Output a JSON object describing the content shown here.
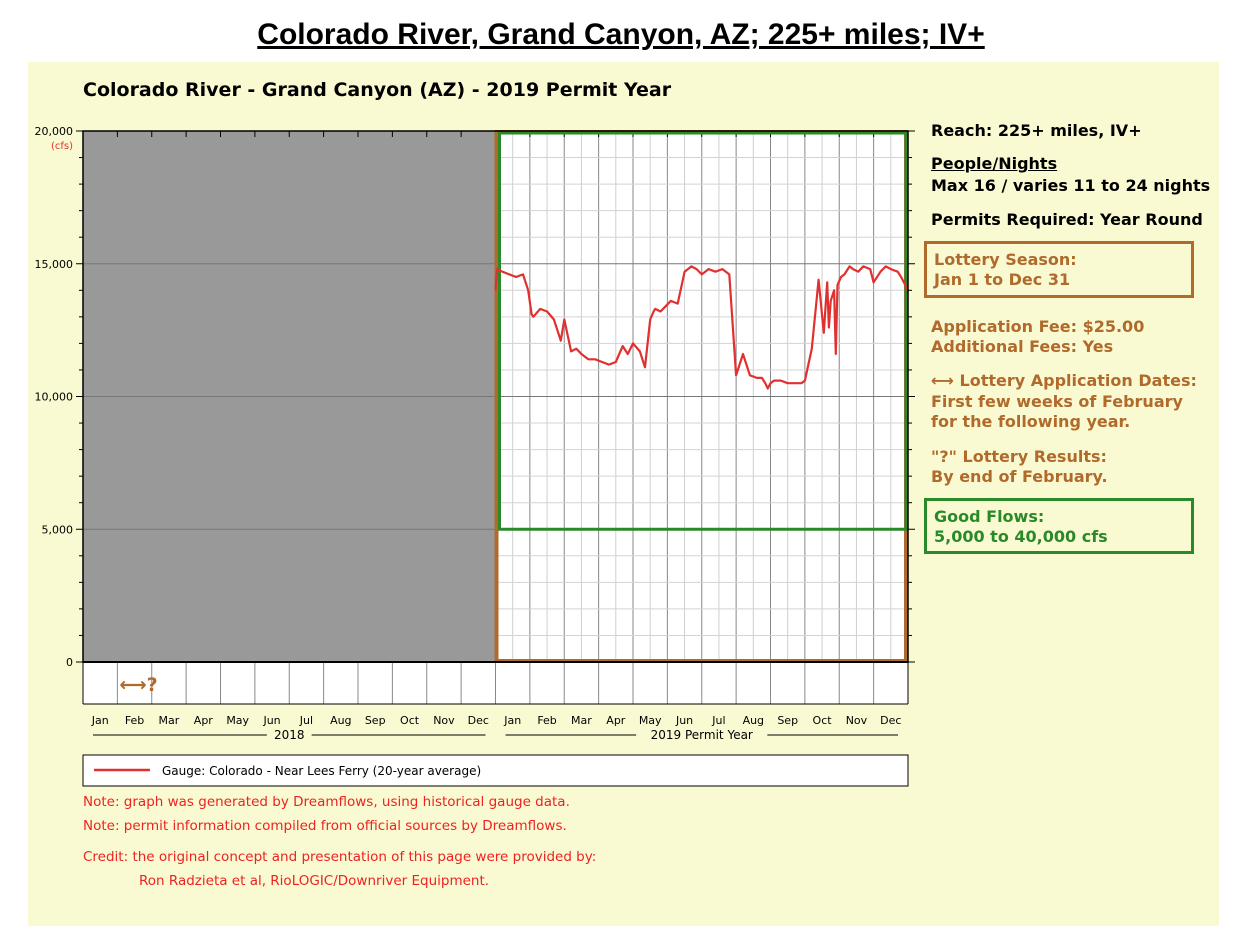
{
  "page_title": "Colorado River, Grand Canyon, AZ; 225+ miles; IV+",
  "info": {
    "reach": "Reach: 225+ miles, IV+",
    "people_heading": "People/Nights",
    "people_value": "Max 16 / varies 11 to 24 nights",
    "permits": "Permits Required: Year Round",
    "lottery_season_label": "Lottery Season:",
    "lottery_season_value": "Jan 1 to Dec 31",
    "application_fee": "Application Fee: $25.00",
    "additional_fees": "Additional Fees: Yes",
    "lottery_dates_label": "⟷ Lottery Application Dates:",
    "lottery_dates_line1": "First few weeks of February",
    "lottery_dates_line2": "for the following year.",
    "lottery_results_label": "\"?\" Lottery Results:",
    "lottery_results_value": "By end of February.",
    "good_flows_label": "Good Flows:",
    "good_flows_value": "5,000 to 40,000 cfs"
  },
  "notes": {
    "note1": "Note: graph was generated by Dreamflows, using historical gauge data.",
    "note2": "Note: permit information compiled from official sources by Dreamflows.",
    "credit1": "Credit: the original concept and presentation of this page were provided by:",
    "credit2": "Ron Radzieta et al, RioLOGIC/Downriver Equipment."
  },
  "colors": {
    "panel": "#fafad2",
    "series": "#e03030",
    "gray_region": "#999999",
    "lottery_box": "#b06a2c",
    "good_flows_box": "#2a8a2a",
    "note_text": "#ee2222"
  },
  "chart_data": {
    "type": "line",
    "title": "Colorado River - Grand Canyon (AZ) - 2019 Permit Year",
    "ylabel": "(cfs)",
    "ylim": [
      0,
      20000
    ],
    "yticks": [
      0,
      5000,
      10000,
      15000,
      20000
    ],
    "ytick_labels": [
      "0",
      "5,000",
      "10,000",
      "15,000",
      "20,000"
    ],
    "grid": true,
    "months": [
      "Jan",
      "Feb",
      "Mar",
      "Apr",
      "May",
      "Jun",
      "Jul",
      "Aug",
      "Sep",
      "Oct",
      "Nov",
      "Dec",
      "Jan",
      "Feb",
      "Mar",
      "Apr",
      "May",
      "Jun",
      "Jul",
      "Aug",
      "Sep",
      "Oct",
      "Nov",
      "Dec"
    ],
    "year_labels": [
      "2018",
      "2019 Permit Year"
    ],
    "legend": "Gauge: Colorado - Near Lees Ferry (20-year average)",
    "legend_position": "bottom",
    "lottery_marker": "⟷?",
    "good_flows_range": [
      5000,
      40000
    ],
    "series": [
      {
        "name": "Gauge: Colorado - Near Lees Ferry (20-year average)",
        "x": [
          12.0,
          12.05,
          12.2,
          12.4,
          12.6,
          12.8,
          12.95,
          13.05,
          13.1,
          13.3,
          13.5,
          13.7,
          13.9,
          14.0,
          14.15,
          14.2,
          14.35,
          14.5,
          14.7,
          14.9,
          15.1,
          15.3,
          15.5,
          15.7,
          15.85,
          16.0,
          16.2,
          16.35,
          16.5,
          16.6,
          16.65,
          16.8,
          16.95,
          17.1,
          17.3,
          17.5,
          17.7,
          17.85,
          18.0,
          18.2,
          18.4,
          18.6,
          18.8,
          19.0,
          19.2,
          19.4,
          19.6,
          19.75,
          19.85,
          19.92,
          20.0,
          20.1,
          20.3,
          20.5,
          20.7,
          20.9,
          21.0,
          21.2,
          21.4,
          21.55,
          21.65,
          21.7,
          21.75,
          21.85,
          21.9,
          21.95,
          22.05,
          22.15,
          22.3,
          22.4,
          22.55,
          22.7,
          22.9,
          23.0,
          23.2,
          23.35,
          23.5,
          23.7,
          23.8,
          24.0
        ],
        "values": [
          14000,
          14800,
          14700,
          14600,
          14500,
          14600,
          14000,
          13100,
          13000,
          13300,
          13200,
          12900,
          12100,
          12900,
          12000,
          11700,
          11800,
          11600,
          11400,
          11400,
          11300,
          11200,
          11300,
          11900,
          11600,
          12000,
          11700,
          11100,
          12900,
          13200,
          13300,
          13200,
          13400,
          13600,
          13500,
          14700,
          14900,
          14800,
          14600,
          14800,
          14700,
          14800,
          14600,
          10800,
          11600,
          10800,
          10700,
          10700,
          10500,
          10300,
          10500,
          10600,
          10600,
          10500,
          10500,
          10500,
          10600,
          11800,
          14400,
          12400,
          14300,
          12600,
          13600,
          14000,
          11600,
          14200,
          14500,
          14600,
          14900,
          14800,
          14700,
          14900,
          14800,
          14300,
          14700,
          14900,
          14800,
          14700,
          14500,
          14000
        ]
      }
    ]
  }
}
